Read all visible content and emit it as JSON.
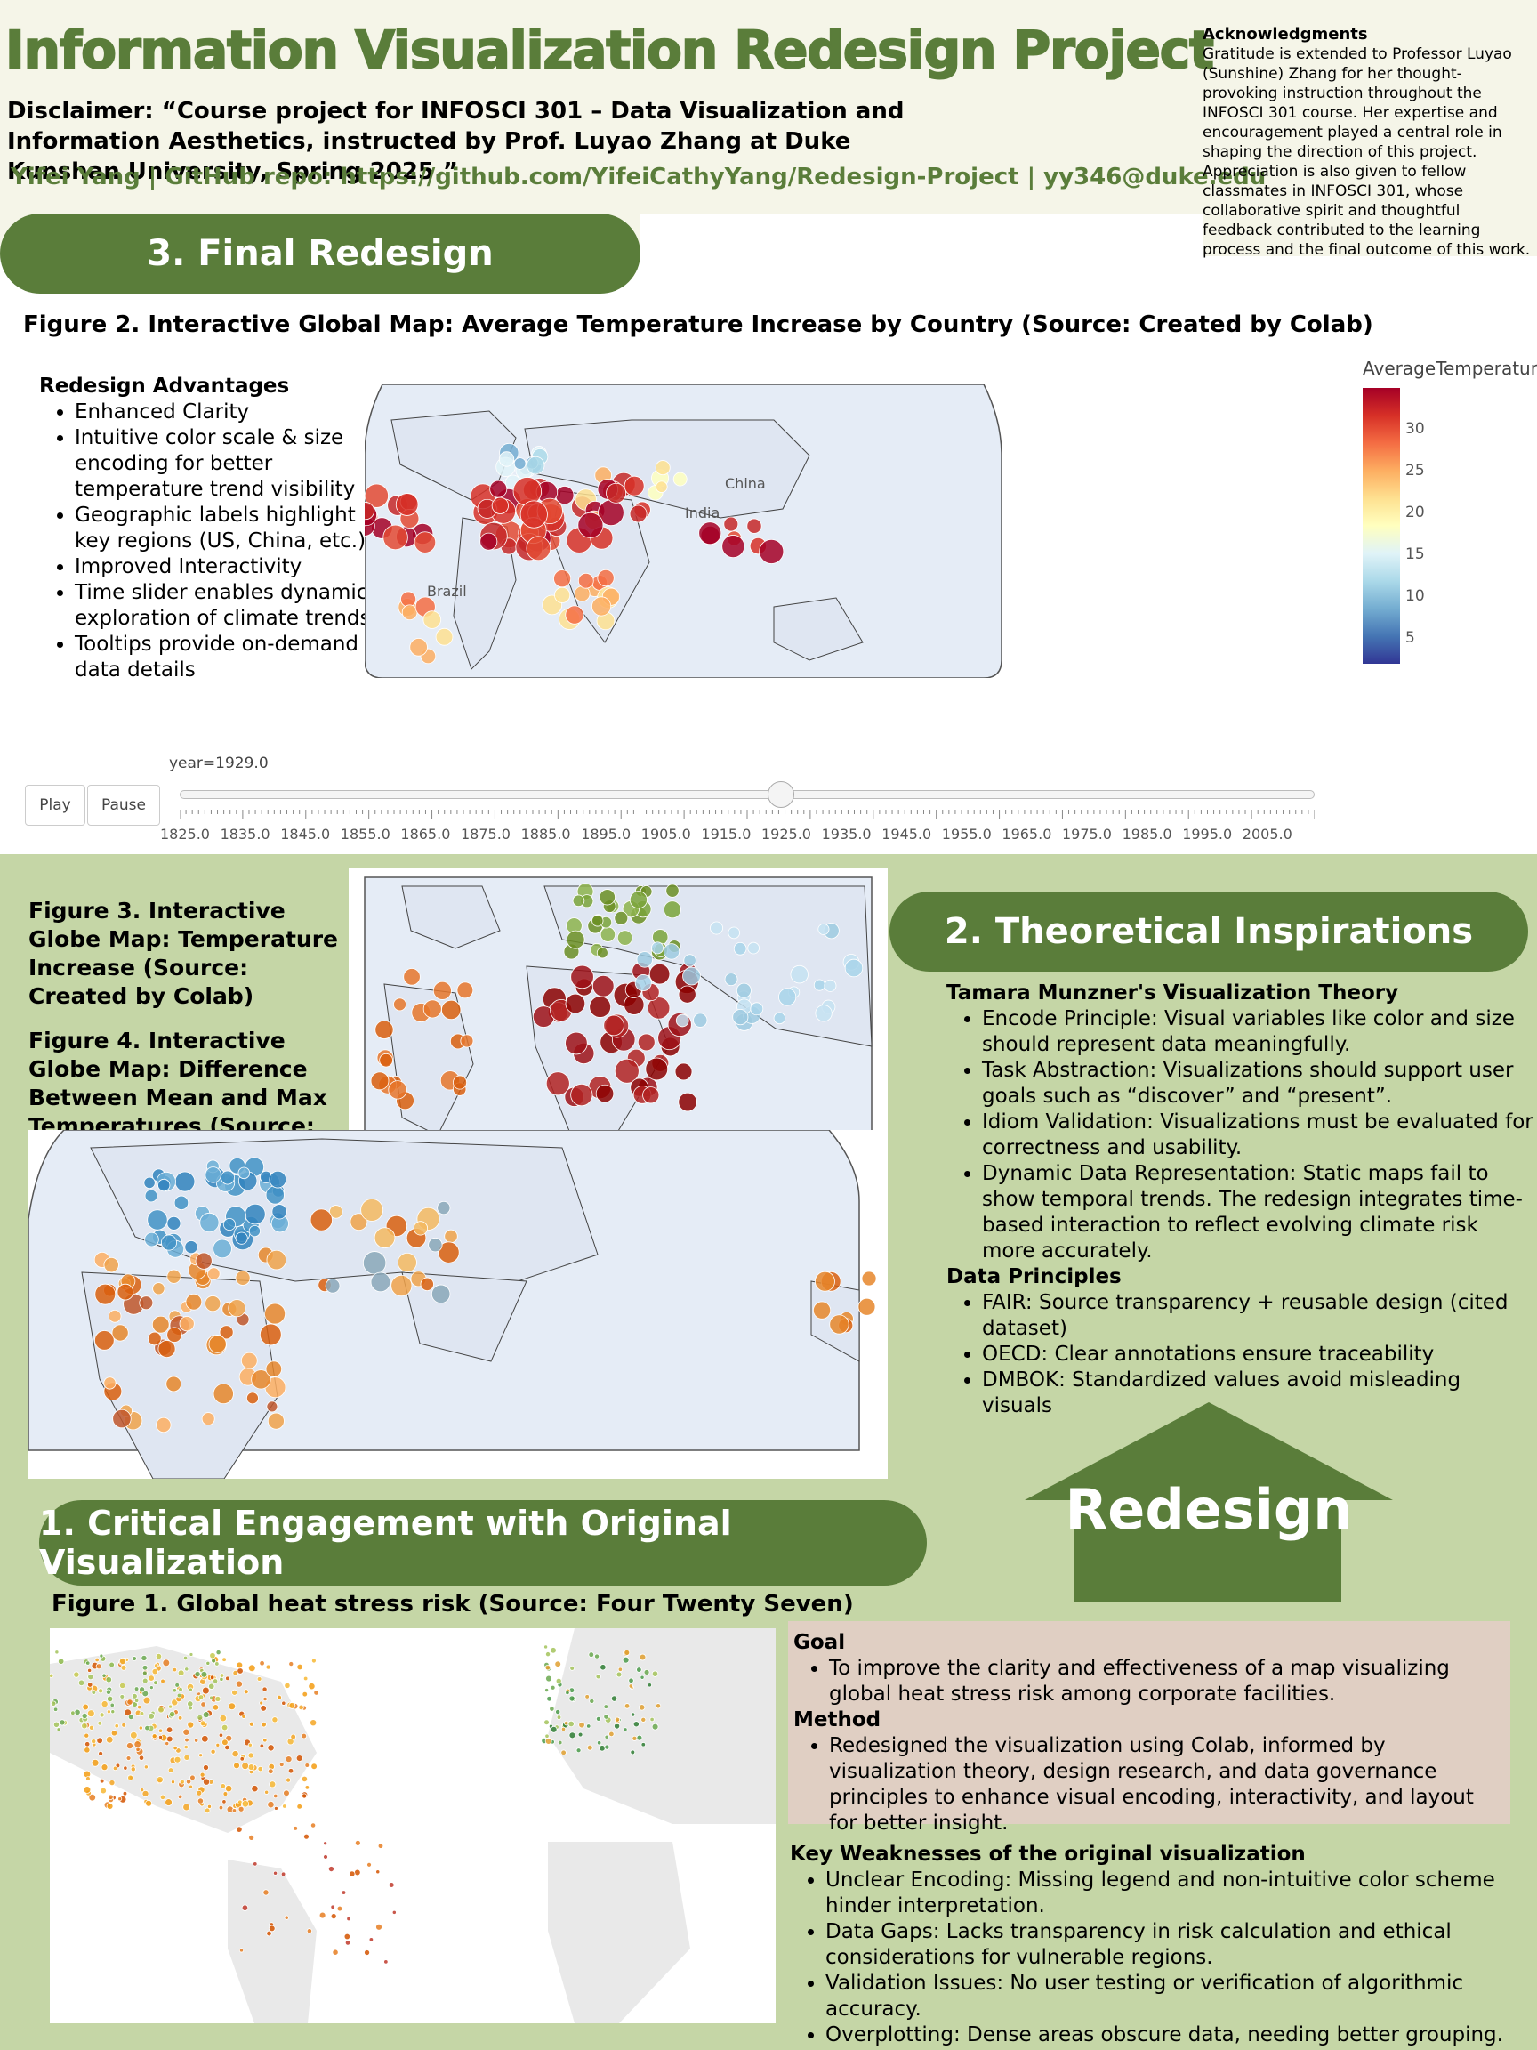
{
  "header": {
    "title": "Information Visualization Redesign Project",
    "disclaimer": "Disclaimer: “Course project for INFOSCI 301 – Data Visualization and Information Aesthetics, instructed by Prof. Luyao Zhang at Duke Kunshan University, Spring 2025.”",
    "author_line": "Yifei Yang | GitHub repo: https://github.com/YifeiCathyYang/Redesign-Project | yy346@duke.edu"
  },
  "acknowledgments": {
    "heading": "Acknowledgments",
    "body": "Gratitude is extended to Professor Luyao (Sunshine) Zhang for her thought-provoking instruction throughout the INFOSCI 301 course. Her expertise and encouragement played a central role in shaping the direction of this project. Appreciation is also given to fellow classmates in INFOSCI 301, whose collaborative spirit and thoughtful feedback contributed to the learning process and the final outcome of this work."
  },
  "sections": {
    "final": "3. Final Redesign",
    "theory": "2. Theoretical Inspirations",
    "critical": "1. Critical Engagement with Original Visualization"
  },
  "figure2": {
    "caption": "Figure 2. Interactive Global Map: Average Temperature Increase by Country (Source: Created by Colab)",
    "map_labels": [
      "China",
      "India",
      "Brazil"
    ],
    "colorbar_title": "AverageTemperature",
    "colorbar_ticks": [
      "30",
      "25",
      "20",
      "15",
      "10",
      "5"
    ],
    "colors": {
      "high": "#a50026",
      "mid": "#ffffbf",
      "low": "#313695"
    }
  },
  "advantages": {
    "heading": "Redesign Advantages",
    "items": [
      "Enhanced Clarity",
      "Intuitive color scale & size encoding for better temperature trend visibility",
      "Geographic labels highlight key regions (US, China, etc.)",
      "Improved Interactivity",
      "Time slider enables dynamic exploration of climate trends",
      "Tooltips provide on-demand data details"
    ]
  },
  "slider": {
    "current": "year=1929.0",
    "play": "Play",
    "pause": "Pause",
    "years": [
      "1825.0",
      "1835.0",
      "1845.0",
      "1855.0",
      "1865.0",
      "1875.0",
      "1885.0",
      "1895.0",
      "1905.0",
      "1915.0",
      "1925.0",
      "1935.0",
      "1945.0",
      "1955.0",
      "1965.0",
      "1975.0",
      "1985.0",
      "1995.0",
      "2005.0"
    ],
    "value_fraction": 0.53
  },
  "figure3": {
    "caption": "Figure 3. Interactive Globe Map: Temperature Increase (Source: Created by Colab)"
  },
  "figure4": {
    "caption": "Figure 4. Interactive Globe Map: Difference Between Mean and Max Temperatures (Source: Created by Colab)"
  },
  "theory": {
    "munzner_heading": "Tamara Munzner's Visualization Theory",
    "munzner_items": [
      "Encode Principle: Visual variables like color and size should represent data meaningfully.",
      "Task Abstraction: Visualizations should support user goals such as “discover” and “present”.",
      "Idiom Validation: Visualizations must be evaluated for correctness and usability.",
      "Dynamic Data Representation: Static maps fail to show temporal trends. The redesign integrates time-based interaction to reflect evolving climate risk more accurately."
    ],
    "data_heading": "Data Principles",
    "data_items": [
      "FAIR: Source transparency + reusable design (cited dataset)",
      "OECD: Clear annotations ensure traceability",
      "DMBOK: Standardized values avoid misleading visuals"
    ]
  },
  "redesign_label": "Redesign",
  "figure1": {
    "caption": "Figure 1. Global heat stress risk (Source: Four Twenty Seven)"
  },
  "goal": {
    "goal_heading": "Goal",
    "goal_items": [
      "To improve the clarity and effectiveness of a map visualizing global heat stress risk among corporate facilities."
    ],
    "method_heading": "Method",
    "method_items": [
      "Redesigned the visualization using Colab, informed by visualization theory, design research, and data governance principles to enhance visual encoding, interactivity, and layout for better insight."
    ]
  },
  "weaknesses": {
    "heading": "Key Weaknesses of the original visualization",
    "items": [
      "Unclear Encoding: Missing legend and non-intuitive color scheme hinder interpretation.",
      "Data Gaps: Lacks transparency in risk calculation and ethical considerations for vulnerable regions.",
      "Validation Issues: No user testing or verification of algorithmic accuracy.",
      "Overplotting: Dense areas obscure data, needing better grouping."
    ]
  },
  "theme": {
    "accent": "#5a7d3a",
    "background": "#c5d6a6",
    "header_bg": "#f5f5e8",
    "goal_bg": "#e0cfc3"
  }
}
